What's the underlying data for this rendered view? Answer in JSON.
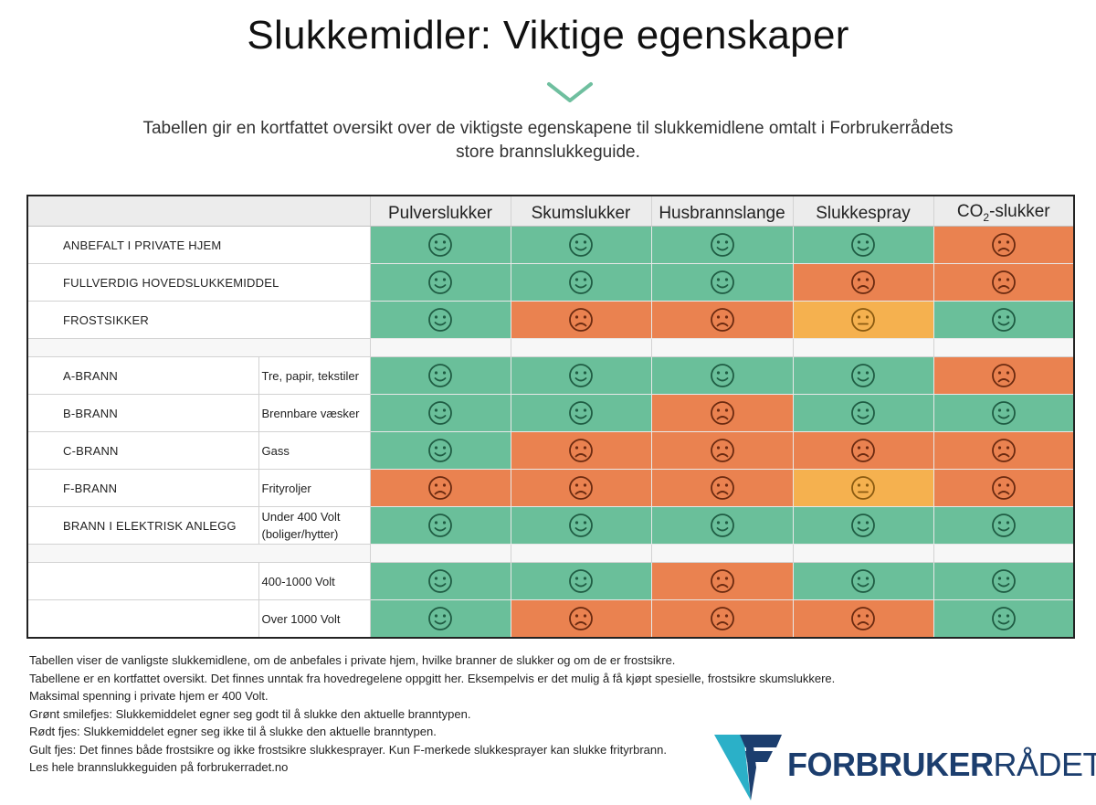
{
  "page": {
    "title": "Slukkemidler: Viktige egenskaper",
    "intro_line1": "Tabellen gir en kortfattet oversikt over de viktigste egenskapene til slukkemidlene omtalt i Forbrukerrådets",
    "intro_line2": "store  brannslukkeguide."
  },
  "table": {
    "columns": [
      "Pulverslukker",
      "Skumslukker",
      "Husbrannslange",
      "Slukkespray"
    ],
    "co2_column": {
      "prefix": "CO",
      "subscript": "2",
      "suffix": "-slukker"
    },
    "rows": [
      {
        "label": "ANBEFALT I PRIVATE HJEM",
        "sub": "",
        "ratings": [
          "good",
          "good",
          "good",
          "good",
          "bad"
        ]
      },
      {
        "label": "FULLVERDIG HOVEDSLUKKEMIDDEL",
        "sub": "",
        "ratings": [
          "good",
          "good",
          "good",
          "bad",
          "bad"
        ]
      },
      {
        "label": "FROSTSIKKER",
        "sub": "",
        "ratings": [
          "good",
          "bad",
          "bad",
          "ok",
          "good"
        ]
      },
      {
        "gap": true
      },
      {
        "label": "A-BRANN",
        "sub": "Tre, papir, tekstiler",
        "ratings": [
          "good",
          "good",
          "good",
          "good",
          "bad"
        ]
      },
      {
        "label": "B-BRANN",
        "sub": "Brennbare væsker",
        "ratings": [
          "good",
          "good",
          "bad",
          "good",
          "good"
        ]
      },
      {
        "label": "C-BRANN",
        "sub": "Gass",
        "ratings": [
          "good",
          "bad",
          "bad",
          "bad",
          "bad"
        ]
      },
      {
        "label": "F-BRANN",
        "sub": "Frityroljer",
        "ratings": [
          "bad",
          "bad",
          "bad",
          "ok",
          "bad"
        ]
      },
      {
        "label": "BRANN I ELEKTRISK ANLEGG",
        "sub": "Under 400 Volt (boliger/hytter)",
        "ratings": [
          "good",
          "good",
          "good",
          "good",
          "good"
        ]
      },
      {
        "gap": true
      },
      {
        "label": "",
        "sub": "400-1000 Volt",
        "ratings": [
          "good",
          "good",
          "bad",
          "good",
          "good"
        ]
      },
      {
        "label": "",
        "sub": "Over 1000 Volt",
        "ratings": [
          "good",
          "bad",
          "bad",
          "bad",
          "good"
        ]
      }
    ],
    "colors": {
      "good": "#6abf9a",
      "bad": "#ea8250",
      "ok": "#f5b14f",
      "face_good": "#1f5c43",
      "face_bad": "#6b2a10",
      "face_ok": "#8a5a10"
    },
    "icons": {
      "good": "smiley-face-icon",
      "bad": "frowning-face-icon",
      "ok": "neutral-face-icon"
    }
  },
  "notes": [
    "Tabellen viser de vanligste slukkemidlene, om de anbefales i private hjem, hvilke branner de slukker og om de er frostsikre.",
    "Tabellene er en kortfattet oversikt. Det finnes unntak fra hovedregelene oppgitt her. Eksempelvis er det mulig å få kjøpt spesielle, frostsikre skumslukkere.",
    "Maksimal spenning i private hjem er 400 Volt.",
    "Grønt smilefjes: Slukkemiddelet egner seg godt til å slukke den aktuelle branntypen.",
    "Rødt fjes: Slukkemiddelet egner seg ikke til å slukke den aktuelle branntypen.",
    "Gult fjes: Det finnes både frostsikre og ikke frostsikre slukkesprayer. Kun F-merkede slukkesprayer kan slukke frityrbrann.",
    "Les hele brannslukkeguiden på forbrukerradet.no"
  ],
  "logo": {
    "bold": "FORBRUKER",
    "light": "RÅDET",
    "colors": {
      "mark_blue": "#1c3e6e",
      "mark_teal": "#2bb0c8"
    }
  }
}
